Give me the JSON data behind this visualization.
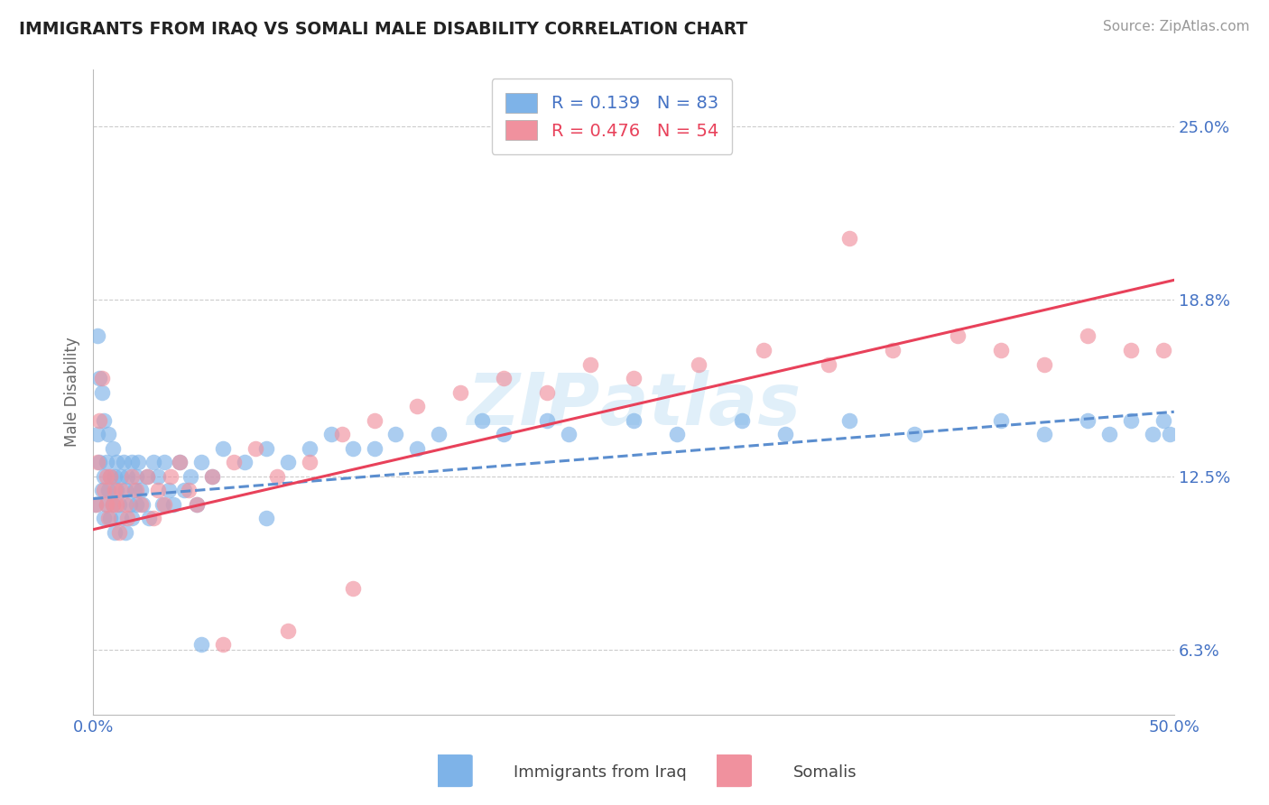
{
  "title": "IMMIGRANTS FROM IRAQ VS SOMALI MALE DISABILITY CORRELATION CHART",
  "source": "Source: ZipAtlas.com",
  "ylabel": "Male Disability",
  "xlim": [
    0.0,
    0.5
  ],
  "ylim": [
    0.04,
    0.27
  ],
  "ytick_positions": [
    0.063,
    0.125,
    0.188,
    0.25
  ],
  "ytick_labels": [
    "6.3%",
    "12.5%",
    "18.8%",
    "25.0%"
  ],
  "iraq_R": 0.139,
  "iraq_N": 83,
  "somali_R": 0.476,
  "somali_N": 54,
  "iraq_color": "#7eb3e8",
  "somali_color": "#f0919e",
  "iraq_line_color": "#5b8ecf",
  "somali_line_color": "#e8415a",
  "legend_iraq_label": "Immigrants from Iraq",
  "legend_somali_label": "Somalis",
  "iraq_x": [
    0.001,
    0.002,
    0.002,
    0.003,
    0.003,
    0.004,
    0.004,
    0.005,
    0.005,
    0.005,
    0.006,
    0.006,
    0.007,
    0.007,
    0.008,
    0.008,
    0.009,
    0.009,
    0.01,
    0.01,
    0.011,
    0.011,
    0.012,
    0.013,
    0.013,
    0.014,
    0.015,
    0.015,
    0.016,
    0.017,
    0.018,
    0.018,
    0.019,
    0.02,
    0.02,
    0.021,
    0.022,
    0.023,
    0.025,
    0.026,
    0.028,
    0.03,
    0.032,
    0.033,
    0.035,
    0.037,
    0.04,
    0.042,
    0.045,
    0.048,
    0.05,
    0.055,
    0.06,
    0.07,
    0.08,
    0.09,
    0.1,
    0.11,
    0.13,
    0.14,
    0.15,
    0.16,
    0.18,
    0.19,
    0.21,
    0.22,
    0.25,
    0.27,
    0.3,
    0.32,
    0.35,
    0.38,
    0.42,
    0.44,
    0.46,
    0.47,
    0.48,
    0.49,
    0.495,
    0.498,
    0.05,
    0.08,
    0.12
  ],
  "iraq_y": [
    0.115,
    0.175,
    0.14,
    0.16,
    0.13,
    0.155,
    0.12,
    0.145,
    0.125,
    0.11,
    0.13,
    0.115,
    0.12,
    0.14,
    0.125,
    0.11,
    0.135,
    0.115,
    0.125,
    0.105,
    0.12,
    0.13,
    0.115,
    0.125,
    0.11,
    0.13,
    0.12,
    0.105,
    0.125,
    0.115,
    0.13,
    0.11,
    0.12,
    0.125,
    0.115,
    0.13,
    0.12,
    0.115,
    0.125,
    0.11,
    0.13,
    0.125,
    0.115,
    0.13,
    0.12,
    0.115,
    0.13,
    0.12,
    0.125,
    0.115,
    0.13,
    0.125,
    0.135,
    0.13,
    0.135,
    0.13,
    0.135,
    0.14,
    0.135,
    0.14,
    0.135,
    0.14,
    0.145,
    0.14,
    0.145,
    0.14,
    0.145,
    0.14,
    0.145,
    0.14,
    0.145,
    0.14,
    0.145,
    0.14,
    0.145,
    0.14,
    0.145,
    0.14,
    0.145,
    0.14,
    0.065,
    0.11,
    0.135
  ],
  "somali_x": [
    0.001,
    0.002,
    0.003,
    0.004,
    0.005,
    0.006,
    0.006,
    0.007,
    0.008,
    0.009,
    0.01,
    0.011,
    0.012,
    0.013,
    0.015,
    0.016,
    0.018,
    0.02,
    0.022,
    0.025,
    0.028,
    0.03,
    0.033,
    0.036,
    0.04,
    0.044,
    0.048,
    0.055,
    0.065,
    0.075,
    0.085,
    0.1,
    0.115,
    0.13,
    0.15,
    0.17,
    0.19,
    0.21,
    0.23,
    0.25,
    0.28,
    0.31,
    0.34,
    0.37,
    0.4,
    0.42,
    0.44,
    0.46,
    0.48,
    0.495,
    0.06,
    0.09,
    0.12,
    0.35
  ],
  "somali_y": [
    0.115,
    0.13,
    0.145,
    0.16,
    0.12,
    0.125,
    0.115,
    0.11,
    0.125,
    0.115,
    0.12,
    0.115,
    0.105,
    0.12,
    0.115,
    0.11,
    0.125,
    0.12,
    0.115,
    0.125,
    0.11,
    0.12,
    0.115,
    0.125,
    0.13,
    0.12,
    0.115,
    0.125,
    0.13,
    0.135,
    0.125,
    0.13,
    0.14,
    0.145,
    0.15,
    0.155,
    0.16,
    0.155,
    0.165,
    0.16,
    0.165,
    0.17,
    0.165,
    0.17,
    0.175,
    0.17,
    0.165,
    0.175,
    0.17,
    0.17,
    0.065,
    0.07,
    0.085,
    0.21
  ],
  "iraq_trend_x": [
    0.0,
    0.5
  ],
  "iraq_trend_y": [
    0.117,
    0.148
  ],
  "somali_trend_x": [
    0.0,
    0.5
  ],
  "somali_trend_y": [
    0.106,
    0.195
  ]
}
